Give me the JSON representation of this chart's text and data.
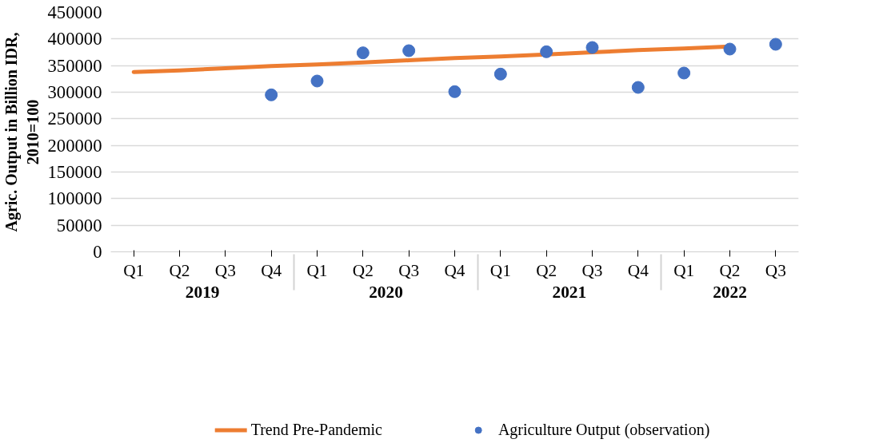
{
  "chart_data": {
    "type": "scatter",
    "ylabel": "Agric. Output in Billion IDR,\n2010=100",
    "categories": [
      "Q1",
      "Q2",
      "Q3",
      "Q4",
      "Q1",
      "Q2",
      "Q3",
      "Q4",
      "Q1",
      "Q2",
      "Q3",
      "Q4",
      "Q1",
      "Q2",
      "Q3"
    ],
    "annotations": [
      "2019",
      "2020",
      "2021",
      "2022"
    ],
    "series": [
      {
        "name": "Trend Pre-Pandemic",
        "type": "line",
        "color": "#ed7d31",
        "line_style": "solid",
        "values": [
          338000,
          341000,
          345000,
          349000,
          352000,
          356000,
          360000,
          364000,
          367000,
          371000,
          375000,
          379000,
          382000,
          386000,
          null
        ]
      },
      {
        "name": "Agriculture Output (observation)",
        "color": "#4472c4",
        "marker": "circle",
        "values": [
          null,
          null,
          null,
          295000,
          321000,
          374000,
          378000,
          301000,
          334000,
          376000,
          384000,
          309000,
          336000,
          381000,
          390000
        ]
      }
    ],
    "ylim": [
      0,
      450000
    ],
    "yticks": [
      0,
      50000,
      100000,
      150000,
      200000,
      250000,
      300000,
      350000,
      400000,
      450000
    ],
    "grid": "y",
    "legend": "bottom"
  }
}
